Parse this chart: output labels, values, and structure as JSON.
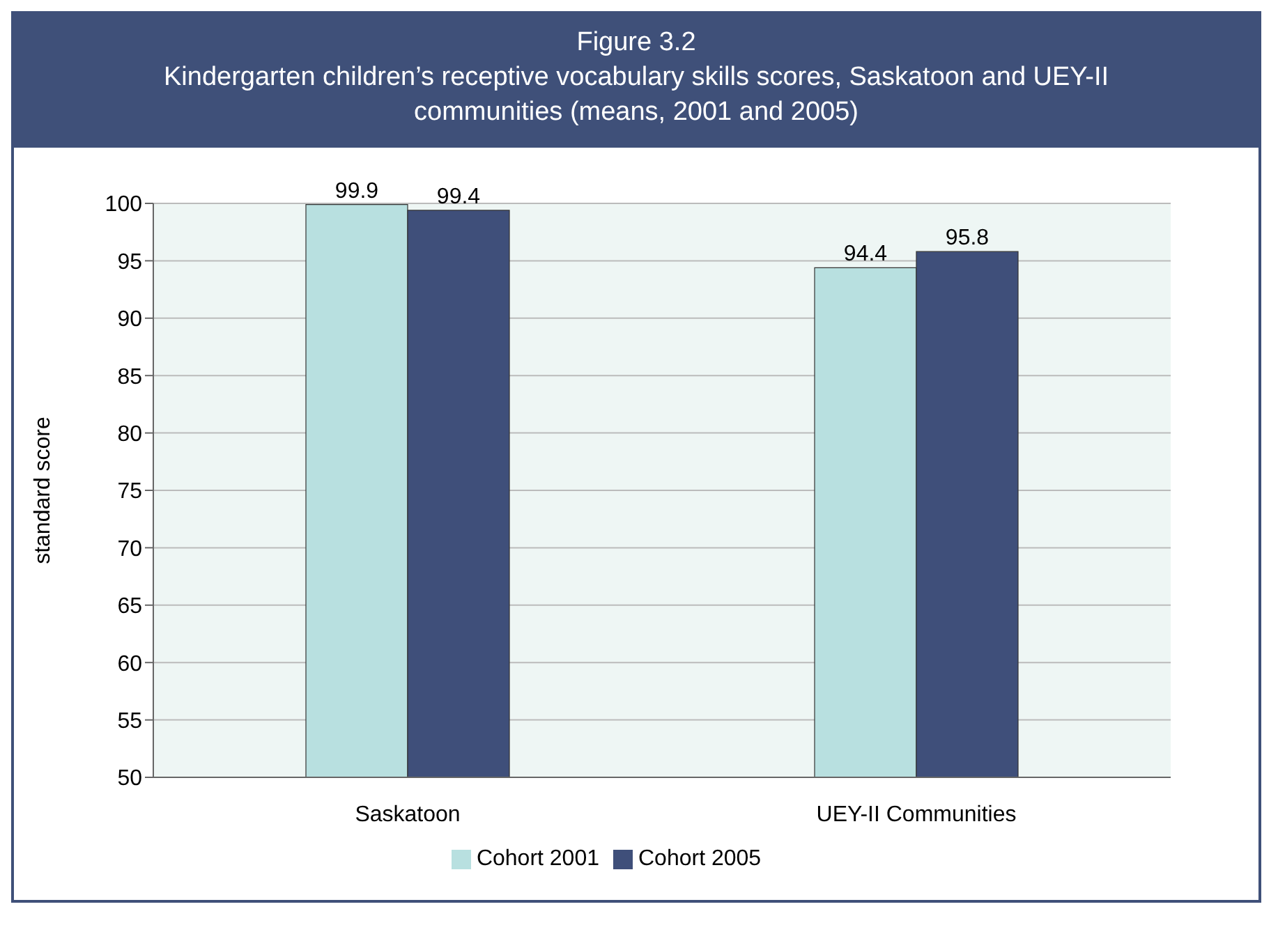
{
  "chart_data": {
    "type": "bar",
    "title": "Figure 3.2",
    "subtitle": "Kindergarten children’s receptive vocabulary skills scores, Saskatoon and UEY-II communities (means, 2001 and 2005)",
    "ylabel": "standard score",
    "categories": [
      "Saskatoon",
      "UEY-II Communities"
    ],
    "series": [
      {
        "name": "Cohort 2001",
        "color": "#b8e0e0",
        "values": [
          99.9,
          94.4
        ]
      },
      {
        "name": "Cohort 2005",
        "color": "#3f4f7a",
        "values": [
          99.4,
          95.8
        ]
      }
    ],
    "ylim": [
      50,
      100
    ],
    "yticks": [
      50,
      55,
      60,
      65,
      70,
      75,
      80,
      85,
      90,
      95,
      100
    ],
    "grid": "y",
    "legend": "bottom",
    "data_labels": true
  }
}
